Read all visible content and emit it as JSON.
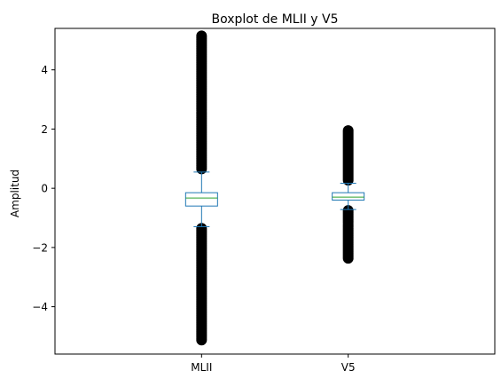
{
  "chart_data": {
    "type": "boxplot",
    "title": "Boxplot de MLII y V5",
    "xlabel": "",
    "ylabel": "Amplitud",
    "ylim": [
      -5.6,
      5.4
    ],
    "yticks": [
      -4,
      -2,
      0,
      2,
      4
    ],
    "ytick_labels": [
      "−4",
      "−2",
      "0",
      "2",
      "4"
    ],
    "categories": [
      "MLII",
      "V5"
    ],
    "grid": false,
    "series": [
      {
        "category": "MLII",
        "whisker_low": -1.3,
        "q1": -0.6,
        "median": -0.33,
        "q3": -0.15,
        "whisker_high": 0.55,
        "outliers_upper_range": [
          0.6,
          5.15
        ],
        "outliers_lower_range": [
          -5.15,
          -1.35
        ]
      },
      {
        "category": "V5",
        "whisker_low": -0.72,
        "q1": -0.4,
        "median": -0.3,
        "q3": -0.15,
        "whisker_high": 0.17,
        "outliers_upper_range": [
          0.22,
          1.95
        ],
        "outliers_lower_range": [
          -2.42,
          -0.75
        ]
      }
    ],
    "colors": {
      "box": "#1f77b4",
      "median": "#2ca02c",
      "outlier": "#000000",
      "axes": "#000000"
    }
  }
}
